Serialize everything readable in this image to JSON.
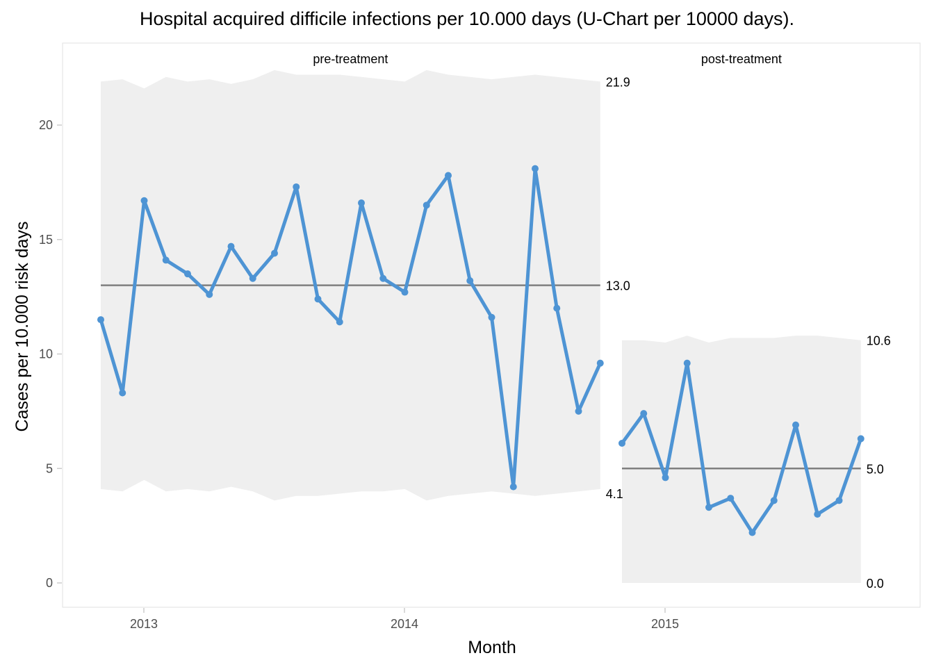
{
  "title": "Hospital acquired difficile infections per 10.000 days (U-Chart per 10000 days).",
  "colors": {
    "line": "#4e94d4",
    "center_line": "#7f7f7f",
    "control_band": "#efefef",
    "panel_border": "#e0e0e0"
  },
  "chart_data": {
    "type": "line",
    "title": "Hospital acquired difficile infections per 10.000 days (U-Chart per 10000 days).",
    "xlabel": "Month",
    "ylabel": "Cases per 10.000 risk days",
    "ylim": [
      -1,
      23
    ],
    "y_ticks": [
      0,
      5,
      10,
      15,
      20
    ],
    "x_ticks": [
      "2013",
      "2014",
      "2015"
    ],
    "grid": false,
    "legend": null,
    "phases": [
      {
        "name": "pre-treatment",
        "start_month_index": 0,
        "center_line": 13.0,
        "ucl_label": "21.9",
        "lcl_label": "4.1",
        "cl_label": "13.0",
        "values": [
          11.5,
          8.3,
          16.7,
          14.1,
          13.5,
          12.6,
          14.7,
          13.3,
          14.4,
          17.3,
          12.4,
          11.4,
          16.6,
          13.3,
          12.7,
          16.5,
          17.8,
          13.2,
          11.6,
          4.2,
          18.1,
          12.0,
          7.5,
          9.6
        ],
        "ucl": [
          21.9,
          22.0,
          21.6,
          22.1,
          21.9,
          22.0,
          21.8,
          22.0,
          22.4,
          22.2,
          22.2,
          22.2,
          22.1,
          22.0,
          21.9,
          22.4,
          22.2,
          22.1,
          22.0,
          22.1,
          22.2,
          22.1,
          22.0,
          21.9
        ],
        "lcl": [
          4.1,
          4.0,
          4.5,
          4.0,
          4.1,
          4.0,
          4.2,
          4.0,
          3.6,
          3.8,
          3.8,
          3.9,
          4.0,
          4.0,
          4.1,
          3.6,
          3.8,
          3.9,
          4.0,
          3.9,
          3.8,
          3.9,
          4.0,
          4.1
        ]
      },
      {
        "name": "post-treatment",
        "start_month_index": 24,
        "center_line": 5.0,
        "ucl_label": "10.6",
        "lcl_label": "0.0",
        "cl_label": "5.0",
        "values": [
          6.1,
          7.4,
          4.6,
          9.6,
          3.3,
          3.7,
          2.2,
          3.6,
          6.9,
          3.0,
          3.6,
          6.3
        ],
        "ucl": [
          10.6,
          10.6,
          10.5,
          10.8,
          10.5,
          10.7,
          10.7,
          10.7,
          10.8,
          10.8,
          10.7,
          10.6
        ],
        "lcl": [
          0,
          0,
          0,
          0,
          0,
          0,
          0,
          0,
          0,
          0,
          0,
          0
        ]
      }
    ]
  }
}
